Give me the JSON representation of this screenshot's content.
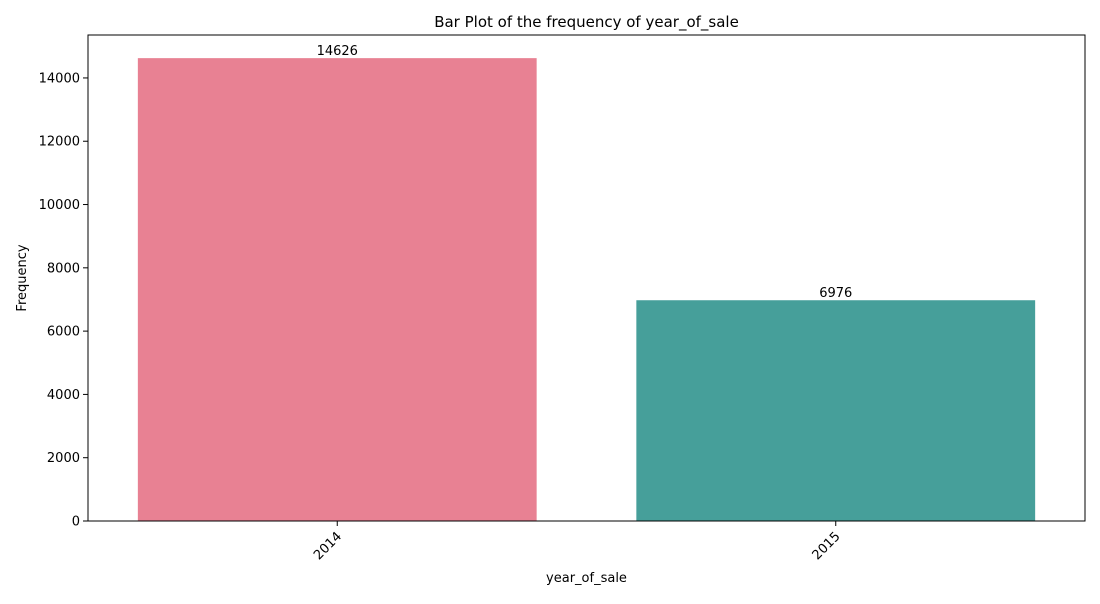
{
  "chart_data": {
    "type": "bar",
    "title": "Bar Plot of the frequency of year_of_sale",
    "xlabel": "year_of_sale",
    "ylabel": "Frequency",
    "categories": [
      "2014",
      "2015"
    ],
    "values": [
      14626,
      6976
    ],
    "data_labels": [
      "14626",
      "6976"
    ],
    "colors": [
      "#e88193",
      "#469f9a"
    ],
    "ylim": [
      0,
      15357
    ],
    "yticks": [
      0,
      2000,
      4000,
      6000,
      8000,
      10000,
      12000,
      14000
    ],
    "ytick_labels": [
      "0",
      "2000",
      "4000",
      "6000",
      "8000",
      "10000",
      "12000",
      "14000"
    ],
    "xtick_rotation": 45,
    "grid": false,
    "legend": "none"
  }
}
